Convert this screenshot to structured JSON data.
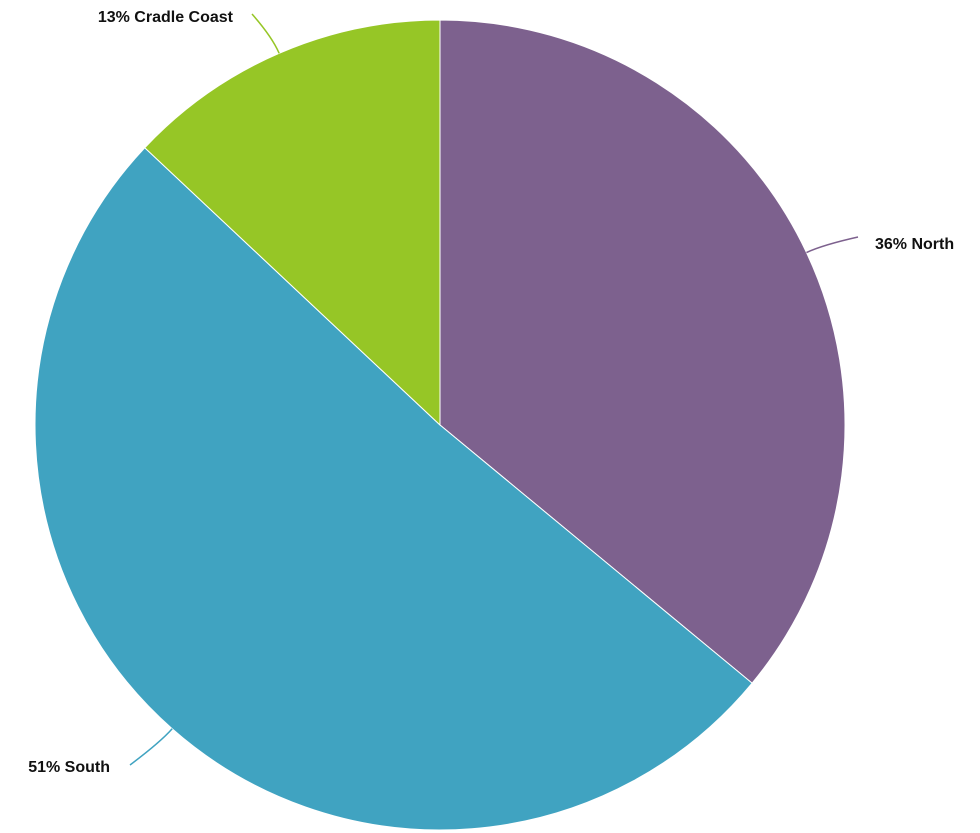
{
  "chart_data": {
    "type": "pie",
    "title": "",
    "start_angle_deg": 0,
    "direction": "clockwise",
    "legend": "none",
    "slices": [
      {
        "name": "North",
        "value": 36,
        "label": "36% North",
        "color": "#7d618e"
      },
      {
        "name": "South",
        "value": 51,
        "label": "51% South",
        "color": "#40a3c1"
      },
      {
        "name": "Cradle Coast",
        "value": 13,
        "label": "13% Cradle Coast",
        "color": "#96c626"
      }
    ]
  }
}
